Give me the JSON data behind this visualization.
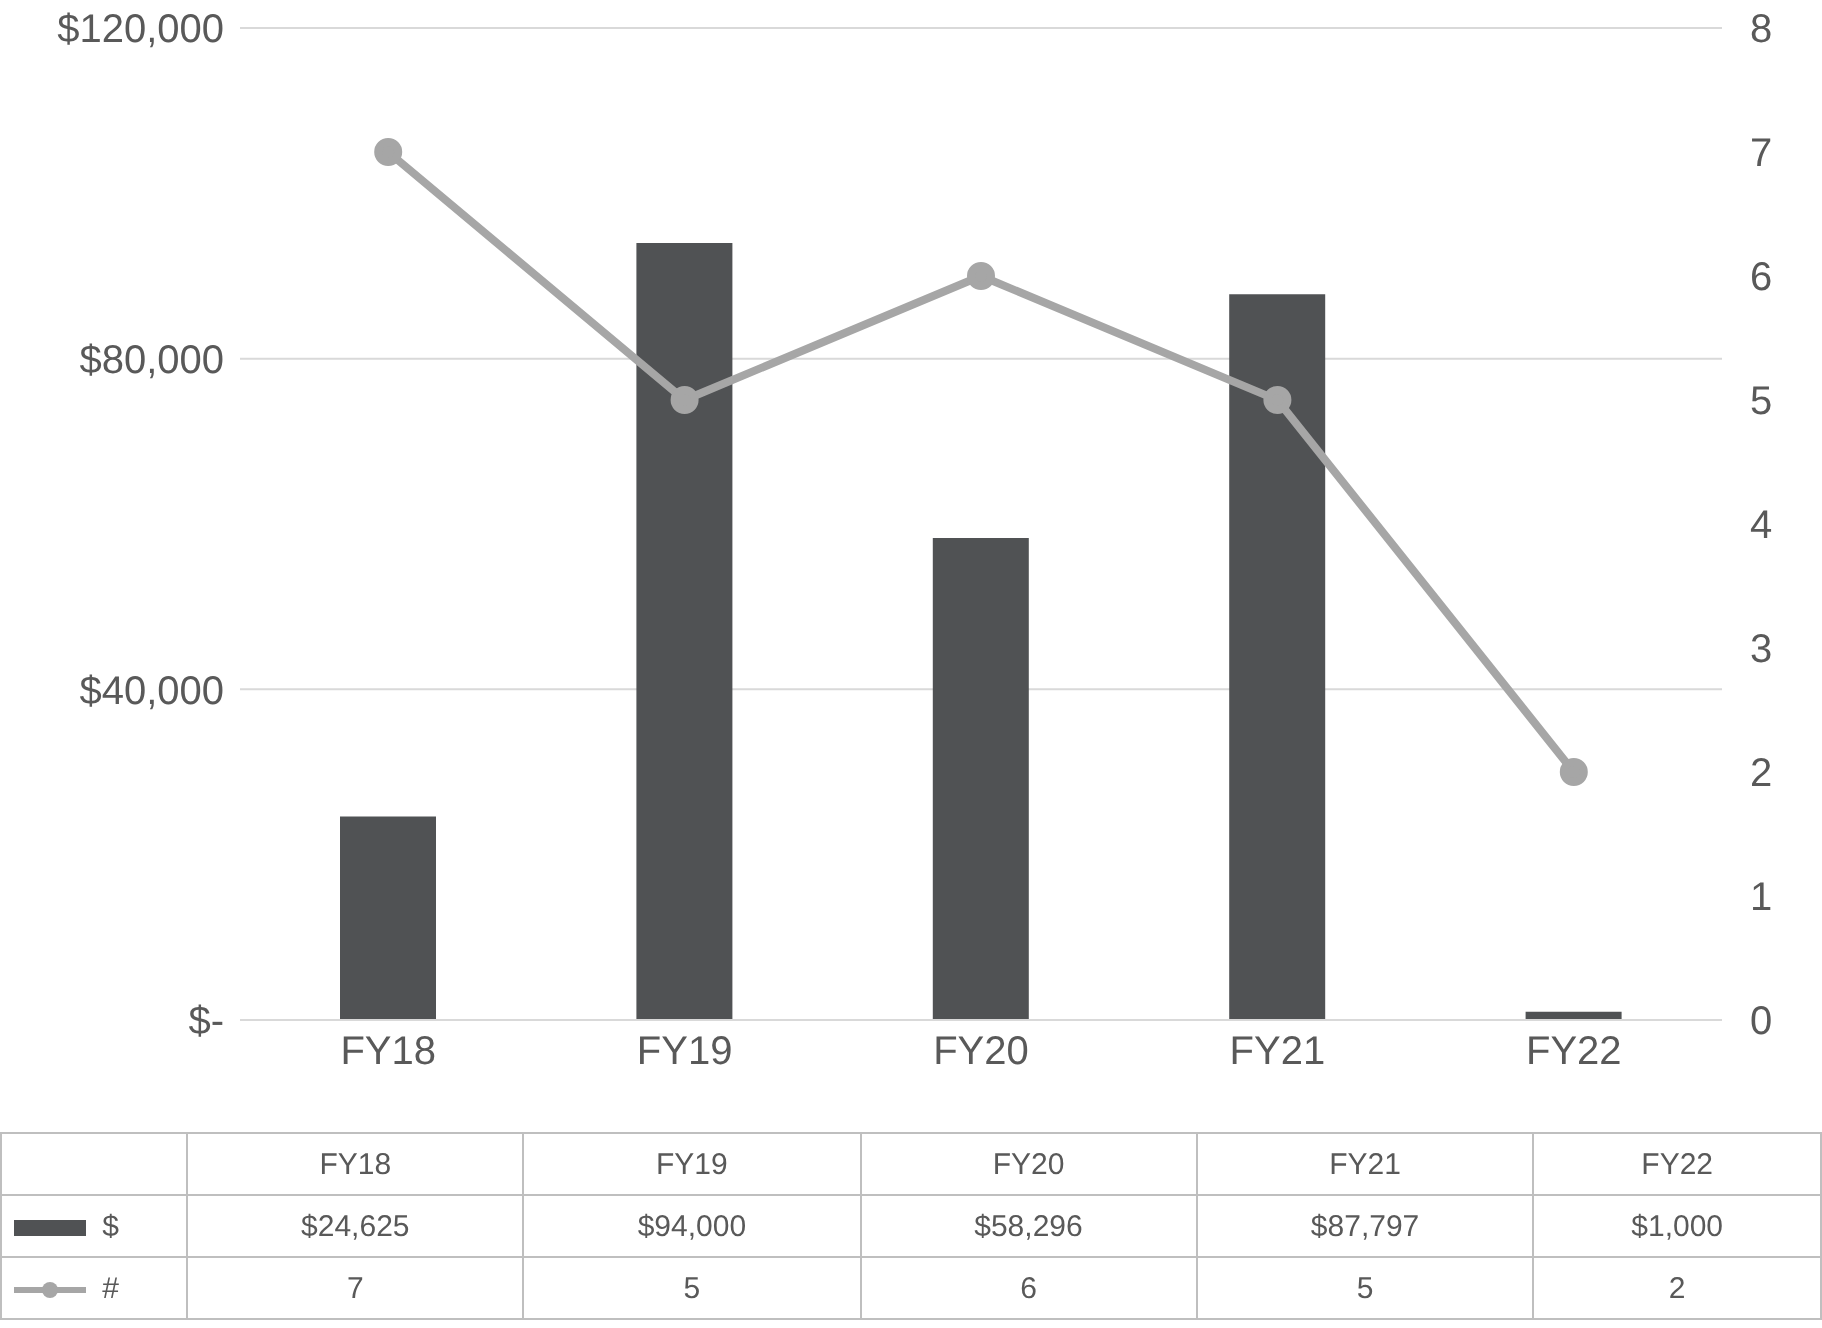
{
  "chart_data": {
    "type": "bar",
    "categories": [
      "FY18",
      "FY19",
      "FY20",
      "FY21",
      "FY22"
    ],
    "series": [
      {
        "name": "$",
        "color": "#505254",
        "values": [
          24625,
          94000,
          58296,
          87797,
          1000
        ],
        "value_labels": [
          "$24,625",
          "$94,000",
          "$58,296",
          "$87,797",
          "$1,000"
        ]
      },
      {
        "name": "#",
        "type": "line",
        "axis": "y2",
        "color": "#a6a6a6",
        "marker": "circle",
        "values": [
          7,
          5,
          6,
          5,
          2
        ],
        "value_labels": [
          "7",
          "5",
          "6",
          "5",
          "2"
        ]
      }
    ],
    "ylim": [
      0,
      120000
    ],
    "yticks": [
      {
        "value": 0,
        "label": "$-"
      },
      {
        "value": 40000,
        "label": "$40,000"
      },
      {
        "value": 80000,
        "label": "$80,000"
      },
      {
        "value": 120000,
        "label": "$120,000"
      }
    ],
    "y2lim": [
      0,
      8
    ],
    "y2ticks": [
      0,
      1,
      2,
      3,
      4,
      5,
      6,
      7,
      8
    ],
    "grid": "y",
    "legend": "bottom"
  }
}
